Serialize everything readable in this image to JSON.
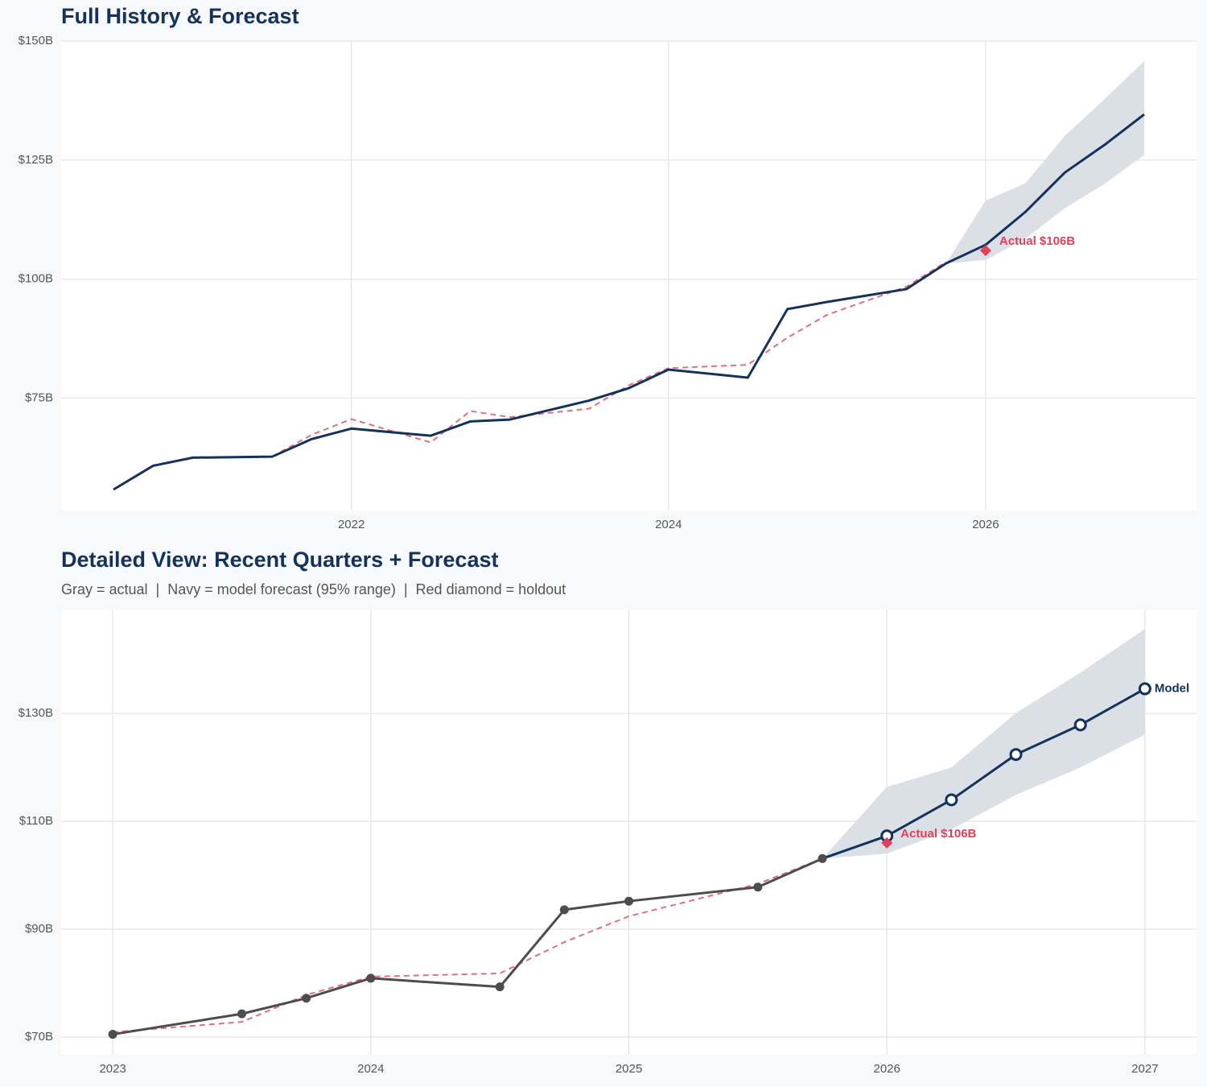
{
  "chart_data": [
    {
      "type": "line",
      "title": "Full History & Forecast",
      "xlim": [
        2020.17,
        2027.33
      ],
      "xticks": [
        2022,
        2024,
        2026
      ],
      "ylim": [
        51.4,
        150
      ],
      "yticks": [
        {
          "value": 75,
          "label": "$75B"
        },
        {
          "value": 100,
          "label": "$100B"
        },
        {
          "value": 125,
          "label": "$125B"
        },
        {
          "value": 150,
          "label": "$150B"
        }
      ],
      "grid": true,
      "band": {
        "color": "#d9dee5",
        "x": [
          2025.75,
          2026,
          2026.25,
          2026.5,
          2026.75,
          2027
        ],
        "lower": [
          103.3,
          104,
          108.5,
          114.9,
          120,
          126.1
        ],
        "upper": [
          103.3,
          116.5,
          120.1,
          130.1,
          137.8,
          145.8
        ]
      },
      "series": [
        {
          "color": "#e07080",
          "dash": true,
          "x": [
            2021.5,
            2021.75,
            2022,
            2022.5,
            2022.75,
            2023,
            2023.5,
            2023.75,
            2024,
            2024.5,
            2024.75,
            2025,
            2025.5,
            2025.75
          ],
          "values": [
            62.7,
            67.3,
            70.6,
            65.7,
            72.3,
            71.0,
            72.8,
            77.7,
            81.3,
            82.0,
            87.7,
            92.5,
            98.4,
            103.6
          ]
        },
        {
          "color": "#14325c",
          "x": [
            2020.5,
            2020.75,
            2021,
            2021.5,
            2021.75,
            2022,
            2022.5,
            2022.75,
            2023,
            2023.5,
            2023.75,
            2024,
            2024.5,
            2024.75,
            2025,
            2025.5,
            2025.75,
            2026,
            2026.25,
            2026.5,
            2026.75,
            2027
          ],
          "values": [
            55.8,
            60.8,
            62.5,
            62.7,
            66.4,
            68.6,
            67.1,
            70.1,
            70.5,
            74.5,
            77.1,
            81.0,
            79.3,
            93.7,
            95.2,
            97.9,
            103.3,
            107.2,
            114.1,
            122.4,
            128.2,
            134.6
          ]
        }
      ],
      "holdout": {
        "x": 2026,
        "value": 106,
        "label": "Actual $106B",
        "color": "#e0405a"
      }
    },
    {
      "type": "line",
      "title": "Detailed View: Recent Quarters + Forecast",
      "subtitle": "Gray = actual  |  Navy = model forecast (95% range)  |  Red diamond = holdout",
      "xlim": [
        2022.8,
        2027.2
      ],
      "xticks": [
        2023,
        2024,
        2025,
        2026,
        2027
      ],
      "ylim": [
        66.7,
        149.3
      ],
      "yticks": [
        {
          "value": 70,
          "label": "$70B"
        },
        {
          "value": 90,
          "label": "$90B"
        },
        {
          "value": 110,
          "label": "$110B"
        },
        {
          "value": 130,
          "label": "$130B"
        }
      ],
      "grid": true,
      "band": {
        "color": "#d9dee5",
        "x": [
          2025.75,
          2026,
          2026.25,
          2026.5,
          2026.75,
          2027
        ],
        "lower": [
          103.1,
          104,
          108.5,
          114.9,
          120,
          126.1
        ],
        "upper": [
          103.1,
          116.4,
          120,
          130.1,
          137.6,
          145.7
        ]
      },
      "series": [
        {
          "color": "#e07080",
          "dash": true,
          "x": [
            2023,
            2023.5,
            2023.75,
            2024,
            2024.5,
            2024.75,
            2025,
            2025.5,
            2025.75
          ],
          "values": [
            70.9,
            72.8,
            77.8,
            81.2,
            81.8,
            87.6,
            92.4,
            98.4,
            103.1
          ]
        },
        {
          "color": "#14325c",
          "marker": "hollow",
          "x": [
            2025.75,
            2026,
            2026.25,
            2026.5,
            2026.75,
            2027
          ],
          "values": [
            103.1,
            107.3,
            114.0,
            122.4,
            127.9,
            134.6
          ]
        },
        {
          "color": "#4d4d4d",
          "marker": "filled",
          "x": [
            2023,
            2023.5,
            2023.75,
            2024,
            2024.5,
            2024.75,
            2025,
            2025.5,
            2025.75
          ],
          "values": [
            70.5,
            74.3,
            77.2,
            80.9,
            79.3,
            93.6,
            95.2,
            97.8,
            103.1
          ]
        }
      ],
      "holdout": {
        "x": 2026,
        "value": 106,
        "label": "Actual $106B",
        "color": "#e0405a"
      },
      "end_label": {
        "series": 1,
        "text": "Model"
      }
    }
  ]
}
